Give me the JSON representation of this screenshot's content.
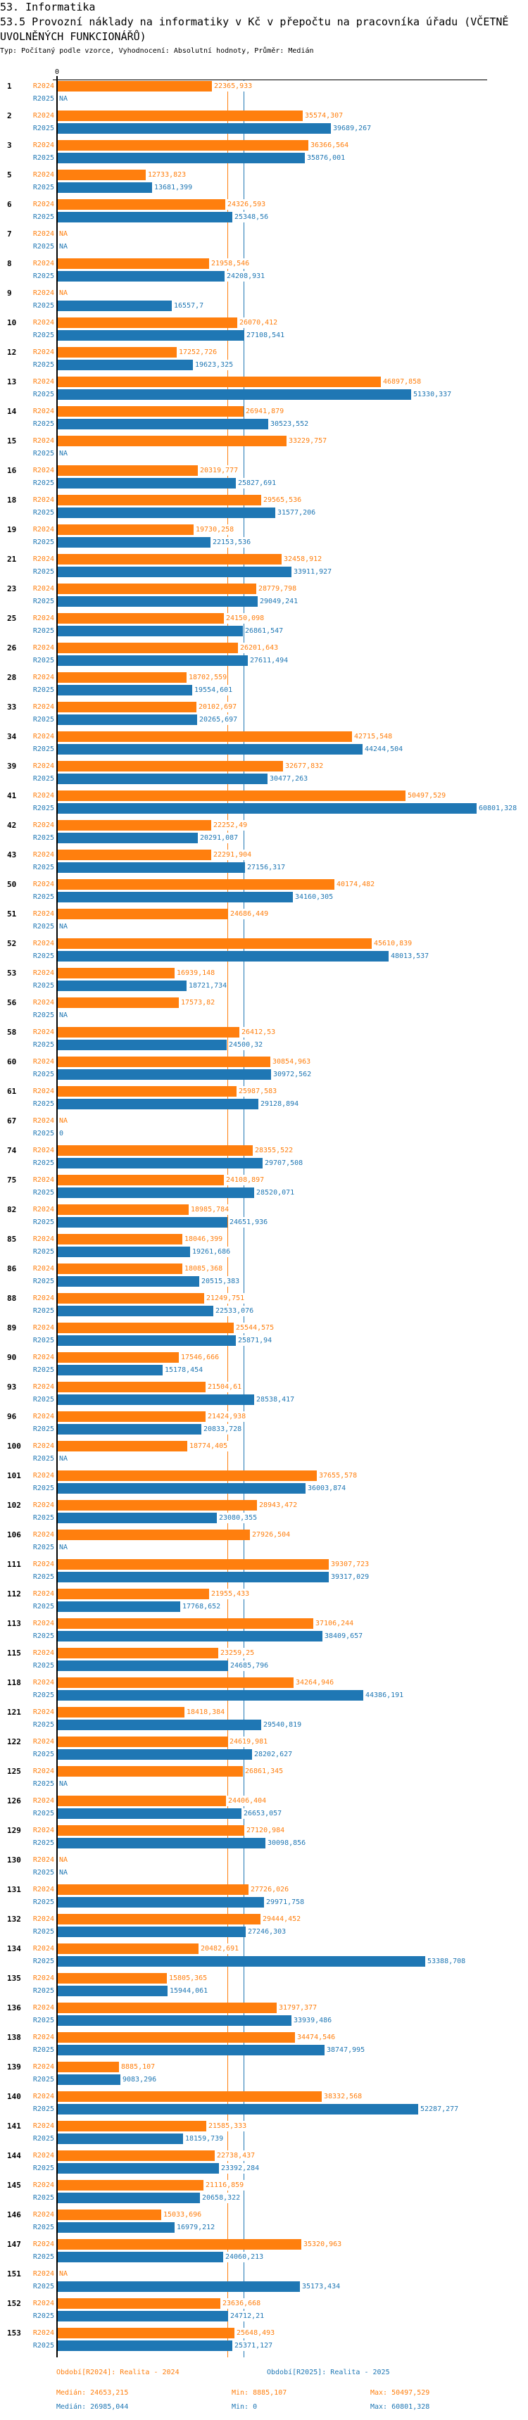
{
  "header": {
    "section": "53. Informatika",
    "title": "53.5 Provozní náklady na informatiky v Kč v přepočtu na pracovníka úřadu (VČETNĚ UVOLNĚNÝCH FUNKCIONÁŘŮ)",
    "subtitle": "Typ: Počítaný podle vzorce, Vyhodnocení: Absolutní hodnoty, Průměr: Medián"
  },
  "legend": {
    "r2024": {
      "period": "Období[R2024]: Realita - 2024",
      "median": "Medián: 24653,215",
      "min": "Min: 8885,107",
      "max": "Max: 50497,529"
    },
    "r2025": {
      "period": "Období[R2025]: Realita - 2025",
      "median": "Medián: 26985,044",
      "min": "Min: 0",
      "max": "Max: 60801,328"
    }
  },
  "chart_data": {
    "type": "bar",
    "orientation": "horizontal",
    "title": "53.5 Provozní náklady na informatiky v Kč v přepočtu na pracovníka úřadu (VČETNĚ UVOLNĚNÝCH FUNKCIONÁŘŮ)",
    "xlabel": "",
    "ylabel": "",
    "xlim": [
      0,
      60801.328
    ],
    "x_tick_labels": [
      "0"
    ],
    "grid": false,
    "legend_position": "bottom",
    "na_label": "NA",
    "decimal_separator": ",",
    "reference_lines": "median per series",
    "categories": [
      "1",
      "2",
      "3",
      "5",
      "6",
      "7",
      "8",
      "9",
      "10",
      "12",
      "13",
      "14",
      "15",
      "16",
      "18",
      "19",
      "21",
      "23",
      "25",
      "26",
      "28",
      "33",
      "34",
      "39",
      "41",
      "42",
      "43",
      "50",
      "51",
      "52",
      "53",
      "56",
      "58",
      "60",
      "61",
      "67",
      "74",
      "75",
      "82",
      "85",
      "86",
      "88",
      "89",
      "90",
      "93",
      "96",
      "100",
      "101",
      "102",
      "106",
      "111",
      "112",
      "113",
      "115",
      "118",
      "121",
      "122",
      "125",
      "126",
      "129",
      "130",
      "131",
      "132",
      "134",
      "135",
      "136",
      "138",
      "139",
      "140",
      "141",
      "144",
      "145",
      "146",
      "147",
      "151",
      "152",
      "153"
    ],
    "series": [
      {
        "name": "R2024",
        "legend": "Období[R2024]: Realita - 2024",
        "color": "#ff7f0e",
        "median": 24653.215,
        "min": 8885.107,
        "max": 50497.529,
        "values": [
          22365.933,
          35574.307,
          36366.564,
          12733.823,
          24326.593,
          null,
          21958.546,
          null,
          26070.412,
          17252.726,
          46897.858,
          26941.879,
          33229.757,
          20319.777,
          29565.536,
          19730.258,
          32458.912,
          28779.798,
          24150.098,
          26201.643,
          18702.559,
          20102.697,
          42715.548,
          32677.832,
          50497.529,
          22252.49,
          22291.904,
          40174.482,
          24686.449,
          45610.839,
          16939.148,
          17573.82,
          26412.53,
          30854.963,
          25987.583,
          null,
          28355.522,
          24108.897,
          18985.784,
          18046.399,
          18085.368,
          21249.751,
          25544.575,
          17546.666,
          21504.61,
          21424.938,
          18774.405,
          37655.578,
          28943.472,
          27926.504,
          39307.723,
          21955.433,
          37106.244,
          23259.25,
          34264.946,
          18418.384,
          24619.981,
          26861.345,
          24406.404,
          27120.984,
          null,
          27726.026,
          29444.452,
          20482.691,
          15805.365,
          31797.377,
          34474.546,
          8885.107,
          38332.568,
          21585.333,
          22738.437,
          21116.859,
          15033.696,
          35320.963,
          null,
          23636.668,
          25648.493
        ]
      },
      {
        "name": "R2025",
        "legend": "Období[R2025]: Realita - 2025",
        "color": "#1f77b4",
        "median": 26985.044,
        "min": 0,
        "max": 60801.328,
        "values": [
          null,
          39689.267,
          35876.001,
          13681.399,
          25348.56,
          null,
          24208.931,
          16557.7,
          27108.541,
          19623.325,
          51330.337,
          30523.552,
          null,
          25827.691,
          31577.206,
          22153.536,
          33911.927,
          29049.241,
          26861.547,
          27611.494,
          19554.601,
          20265.697,
          44244.504,
          30477.263,
          60801.328,
          20291.087,
          27156.317,
          34160.305,
          null,
          48013.537,
          18721.734,
          null,
          24500.32,
          30972.562,
          29128.894,
          0,
          29707.508,
          28520.071,
          24651.936,
          19261.686,
          20515.383,
          22533.076,
          25871.94,
          15178.454,
          28538.417,
          20833.728,
          null,
          36003.874,
          23080.355,
          null,
          39317.029,
          17768.652,
          38409.657,
          24685.796,
          44386.191,
          29540.819,
          28202.627,
          null,
          26653.057,
          30098.856,
          null,
          29971.758,
          27246.303,
          53388.708,
          15944.061,
          33939.486,
          38747.995,
          9083.296,
          52287.277,
          18159.739,
          23392.284,
          20658.322,
          16979.212,
          24060.213,
          35173.434,
          24712.21,
          25371.127
        ]
      }
    ]
  }
}
